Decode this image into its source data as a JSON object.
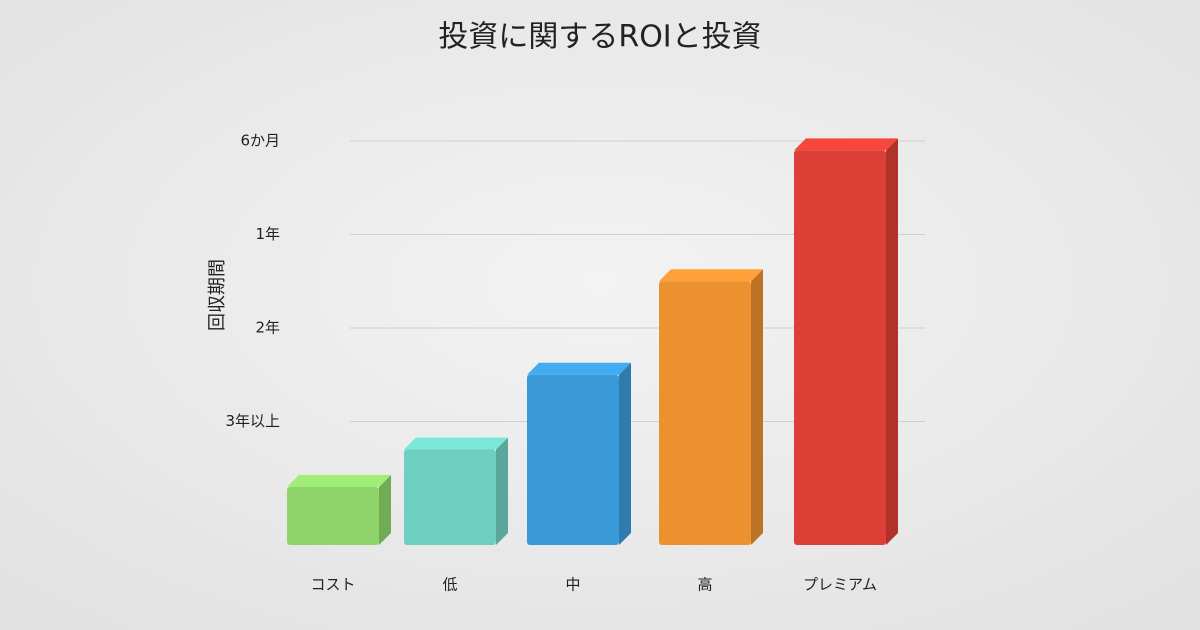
{
  "chart_data": {
    "type": "bar",
    "title": "投資に関するROIと投資",
    "y_label": "回収期間",
    "categories": [
      "コスト",
      "低",
      "中",
      "高",
      "プレミアム"
    ],
    "values": [
      0.3,
      0.7,
      1.5,
      2.5,
      3.9
    ],
    "colors": [
      "#8fd46a",
      "#6fcfc0",
      "#3a9ad8",
      "#ec9030",
      "#dc3f36"
    ],
    "ylim": [
      0,
      4
    ],
    "yticks": [
      {
        "value": 1,
        "label": "3年以上"
      },
      {
        "value": 2,
        "label": "2年"
      },
      {
        "value": 3,
        "label": "1年"
      },
      {
        "value": 4,
        "label": "6か月"
      }
    ],
    "grid": true
  }
}
